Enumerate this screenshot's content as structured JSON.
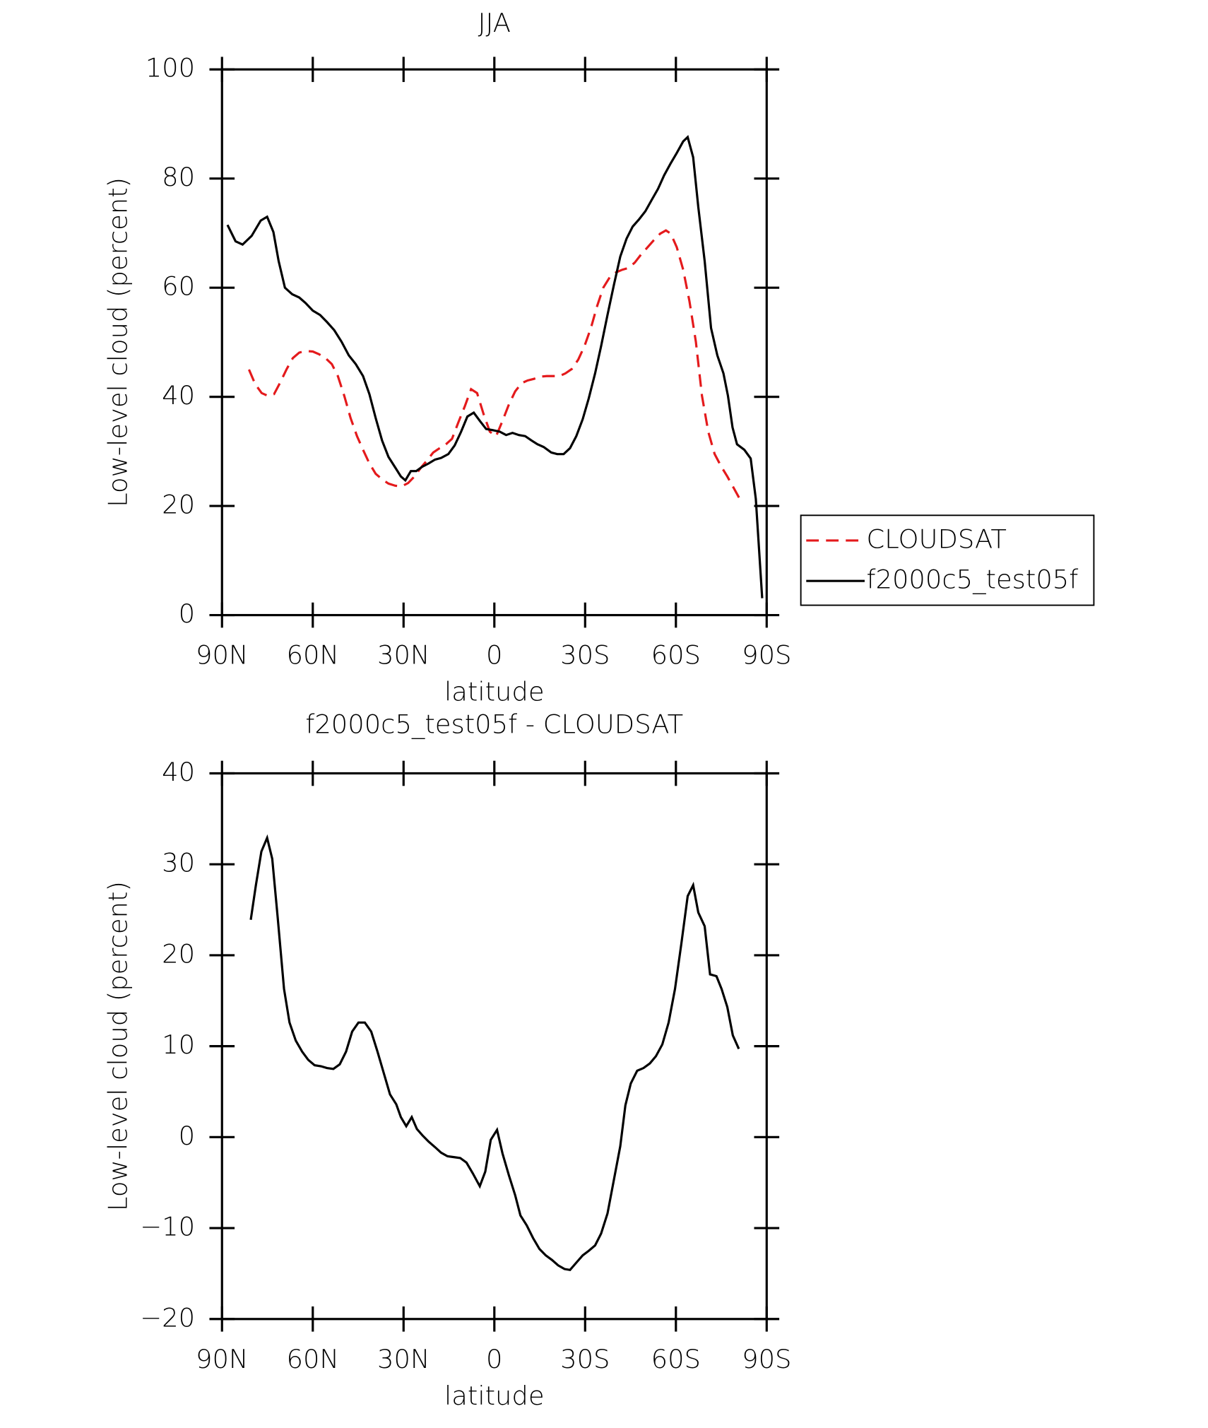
{
  "chart_data": [
    {
      "type": "line",
      "title": "JJA",
      "xlabel": "latitude",
      "ylabel": "Low-level cloud (percent)",
      "xlim": [
        90,
        -90
      ],
      "xticks": [
        {
          "value": 90,
          "label": "90N"
        },
        {
          "value": 60,
          "label": "60N"
        },
        {
          "value": 30,
          "label": "30N"
        },
        0,
        {
          "value": -30,
          "label": "30S"
        },
        {
          "value": -60,
          "label": "60S"
        },
        {
          "value": -90,
          "label": "90S"
        }
      ],
      "ylim": [
        0,
        100
      ],
      "yticks": [
        0,
        20,
        40,
        60,
        80,
        100
      ],
      "legend": "right",
      "series": [
        {
          "name": "CLOUDSAT",
          "color": "#e41a1c",
          "line_style": "dashed",
          "x": [
            81.1,
            79.0,
            76.9,
            74.9,
            72.8,
            70.7,
            68.6,
            66.6,
            64.5,
            62.4,
            60.0,
            57.9,
            55.8,
            53.7,
            51.7,
            49.6,
            47.5,
            45.4,
            43.4,
            41.3,
            39.2,
            37.1,
            35.0,
            32.7,
            30.6,
            28.5,
            26.4,
            24.3,
            22.3,
            20.2,
            18.1,
            16.0,
            14.0,
            11.9,
            9.8,
            7.7,
            5.7,
            3.6,
            1.5,
            -0.6,
            -2.7,
            -4.8,
            -6.9,
            -9.0,
            -11.0,
            -13.1,
            -15.2,
            -17.3,
            -19.4,
            -21.5,
            -23.5,
            -25.6,
            -27.7,
            -29.8,
            -31.9,
            -34.0,
            -36.0,
            -38.1,
            -40.2,
            -42.3,
            -44.3,
            -46.4,
            -48.5,
            -50.6,
            -52.7,
            -54.8,
            -56.7,
            -58.3,
            -60.3,
            -62.4,
            -64.5,
            -66.6,
            -68.6,
            -70.7,
            -72.8,
            -74.9,
            -77.0,
            -79.0,
            -81.1
          ],
          "values": [
            45.0,
            42.3,
            40.7,
            40.2,
            40.5,
            42.7,
            45.1,
            47.1,
            48.1,
            48.4,
            48.3,
            47.8,
            47.1,
            46.0,
            43.8,
            40.2,
            36.1,
            32.8,
            30.3,
            27.8,
            25.9,
            24.9,
            24.1,
            23.7,
            23.6,
            24.2,
            25.4,
            27.0,
            28.3,
            29.8,
            30.6,
            31.3,
            32.3,
            35.3,
            38.2,
            41.4,
            40.7,
            36.9,
            33.6,
            32.8,
            35.6,
            38.6,
            41.0,
            42.5,
            43.0,
            43.3,
            43.7,
            43.8,
            43.8,
            43.8,
            44.3,
            45.1,
            46.8,
            49.3,
            52.6,
            56.7,
            60.0,
            61.9,
            62.8,
            63.3,
            63.6,
            64.6,
            66.1,
            67.4,
            68.7,
            69.9,
            70.5,
            69.9,
            67.4,
            63.3,
            57.5,
            50.1,
            40.2,
            33.6,
            29.5,
            27.3,
            25.4,
            23.4,
            21.3
          ]
        },
        {
          "name": "f2000c5_test05f",
          "color": "#000000",
          "line_style": "solid",
          "x": [
            88.2,
            85.5,
            83.2,
            80.2,
            77.2,
            75.1,
            73.0,
            71.3,
            69.2,
            66.8,
            64.5,
            62.4,
            60.0,
            57.6,
            55.3,
            52.9,
            50.5,
            48.1,
            45.8,
            43.4,
            41.3,
            39.2,
            37.1,
            35.0,
            32.7,
            30.9,
            29.4,
            27.6,
            25.8,
            23.8,
            21.7,
            19.6,
            17.6,
            15.2,
            13.1,
            11.0,
            8.9,
            6.8,
            4.8,
            2.7,
            0.6,
            -1.8,
            -3.9,
            -6.0,
            -8.1,
            -10.2,
            -12.3,
            -14.3,
            -16.3,
            -18.8,
            -20.8,
            -22.9,
            -25.0,
            -27.1,
            -29.2,
            -31.2,
            -33.3,
            -35.3,
            -37.4,
            -39.5,
            -41.6,
            -43.7,
            -45.7,
            -47.8,
            -49.9,
            -52.0,
            -54.1,
            -56.1,
            -58.2,
            -60.3,
            -62.4,
            -63.9,
            -65.7,
            -67.4,
            -69.5,
            -71.6,
            -73.7,
            -75.7,
            -77.2,
            -78.7,
            -80.2,
            -82.6,
            -84.7,
            -86.4,
            -88.5
          ],
          "values": [
            71.5,
            68.5,
            67.9,
            69.5,
            72.3,
            73.0,
            70.2,
            64.9,
            60.0,
            58.8,
            58.2,
            57.2,
            55.8,
            55.0,
            53.7,
            52.2,
            50.1,
            47.6,
            46.0,
            43.8,
            40.5,
            36.1,
            32.0,
            29.0,
            27.0,
            25.4,
            24.7,
            26.4,
            26.4,
            27.2,
            27.8,
            28.5,
            28.8,
            29.5,
            31.1,
            33.6,
            36.4,
            37.1,
            35.6,
            34.1,
            33.9,
            33.6,
            33.0,
            33.4,
            33.0,
            32.8,
            32.0,
            31.3,
            30.8,
            29.8,
            29.5,
            29.5,
            30.6,
            32.8,
            35.9,
            39.7,
            44.3,
            49.3,
            55.0,
            60.5,
            65.7,
            69.0,
            71.2,
            72.5,
            74.0,
            76.1,
            78.1,
            80.6,
            82.7,
            84.7,
            86.8,
            87.6,
            83.9,
            74.8,
            64.9,
            52.6,
            47.6,
            44.3,
            40.2,
            34.4,
            31.3,
            30.3,
            28.7,
            21.3,
            3.1
          ]
        }
      ]
    },
    {
      "type": "line",
      "title": "f2000c5_test05f - CLOUDSAT",
      "xlabel": "latitude",
      "ylabel": "Low-level cloud (percent)",
      "xlim": [
        90,
        -90
      ],
      "xticks": [
        {
          "value": 90,
          "label": "90N"
        },
        {
          "value": 60,
          "label": "60N"
        },
        {
          "value": 30,
          "label": "30N"
        },
        0,
        {
          "value": -30,
          "label": "30S"
        },
        {
          "value": -60,
          "label": "60S"
        },
        {
          "value": -90,
          "label": "90S"
        }
      ],
      "ylim": [
        -20,
        40
      ],
      "yticks": [
        {
          "value": -20,
          "label": "−20"
        },
        {
          "value": -10,
          "label": "−10"
        },
        0,
        10,
        20,
        30,
        40
      ],
      "series": [
        {
          "color": "#000000",
          "line_style": "solid",
          "x": [
            80.5,
            78.8,
            77.0,
            75.1,
            73.4,
            71.6,
            69.5,
            67.7,
            65.6,
            63.5,
            61.5,
            59.4,
            57.3,
            55.3,
            53.2,
            51.1,
            49.0,
            47.0,
            44.9,
            42.8,
            40.7,
            38.6,
            36.6,
            34.5,
            32.4,
            30.9,
            29.1,
            27.3,
            25.6,
            23.8,
            21.7,
            19.6,
            17.6,
            15.5,
            13.4,
            11.3,
            9.2,
            7.1,
            4.8,
            3.0,
            1.2,
            -0.9,
            -2.7,
            -4.8,
            -6.9,
            -8.6,
            -10.7,
            -12.8,
            -14.9,
            -17.0,
            -19.0,
            -21.1,
            -23.2,
            -25.0,
            -27.1,
            -29.2,
            -31.2,
            -33.3,
            -35.3,
            -37.4,
            -39.5,
            -41.6,
            -43.3,
            -45.1,
            -47.2,
            -49.3,
            -51.4,
            -53.4,
            -55.5,
            -57.6,
            -59.7,
            -61.8,
            -63.9,
            -65.7,
            -67.4,
            -69.5,
            -71.3,
            -73.4,
            -75.1,
            -77.0,
            -78.8,
            -80.8
          ],
          "values": [
            23.9,
            27.7,
            31.4,
            32.9,
            30.6,
            24.2,
            16.3,
            12.6,
            10.6,
            9.4,
            8.5,
            7.9,
            7.8,
            7.6,
            7.5,
            8.0,
            9.4,
            11.6,
            12.6,
            12.6,
            11.6,
            9.4,
            7.1,
            4.7,
            3.6,
            2.2,
            1.2,
            2.2,
            0.9,
            0.2,
            -0.5,
            -1.1,
            -1.7,
            -2.1,
            -2.2,
            -2.3,
            -2.8,
            -4.0,
            -5.4,
            -3.8,
            -0.3,
            0.8,
            -1.8,
            -4.2,
            -6.4,
            -8.6,
            -9.7,
            -11.1,
            -12.3,
            -13.0,
            -13.5,
            -14.1,
            -14.5,
            -14.6,
            -13.8,
            -13.0,
            -12.5,
            -11.9,
            -10.6,
            -8.4,
            -4.7,
            -1.0,
            3.5,
            5.9,
            7.3,
            7.6,
            8.1,
            8.9,
            10.2,
            12.6,
            16.3,
            21.3,
            26.5,
            27.7,
            24.7,
            23.2,
            17.9,
            17.7,
            16.3,
            14.3,
            11.2,
            9.7
          ]
        }
      ]
    }
  ]
}
